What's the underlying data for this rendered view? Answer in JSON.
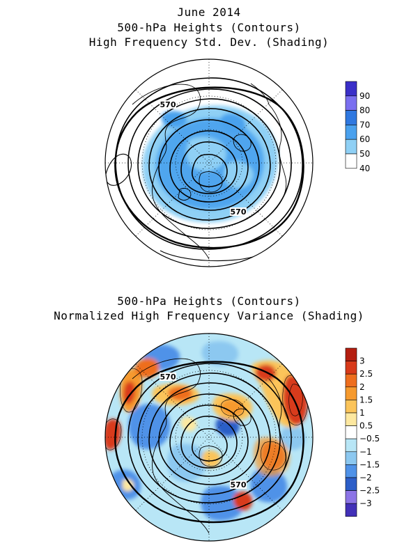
{
  "top_panel": {
    "title_lines": [
      "June 2014",
      "500-hPa Heights (Contours)",
      "High Frequency Std. Dev. (Shading)"
    ],
    "contour_labels": [
      "570",
      "570"
    ],
    "colorbar": {
      "labels": [
        "90",
        "80",
        "70",
        "60",
        "50",
        "40"
      ],
      "colors": [
        "#3a2fc8",
        "#7a6ff0",
        "#2f78e0",
        "#4aa1ee",
        "#8fd0f5",
        "#ffffff"
      ]
    }
  },
  "bottom_panel": {
    "title_lines": [
      "500-hPa Heights (Contours)",
      "Normalized High Frequency Variance (Shading)"
    ],
    "contour_labels": [
      "570",
      "570"
    ],
    "colorbar": {
      "labels": [
        "3",
        "2.5",
        "2",
        "1.5",
        "1",
        "0.5",
        "−0.5",
        "−1",
        "−1.5",
        "−2",
        "−2.5",
        "−3"
      ],
      "colors": [
        "#b41e10",
        "#d83a1a",
        "#ee6e1e",
        "#f69a2e",
        "#fbc45a",
        "#fde8a0",
        "#ffffff",
        "#b8e6f6",
        "#8cc8f0",
        "#4f92e8",
        "#2c5ec8",
        "#8c74e6",
        "#4230b8"
      ]
    }
  }
}
